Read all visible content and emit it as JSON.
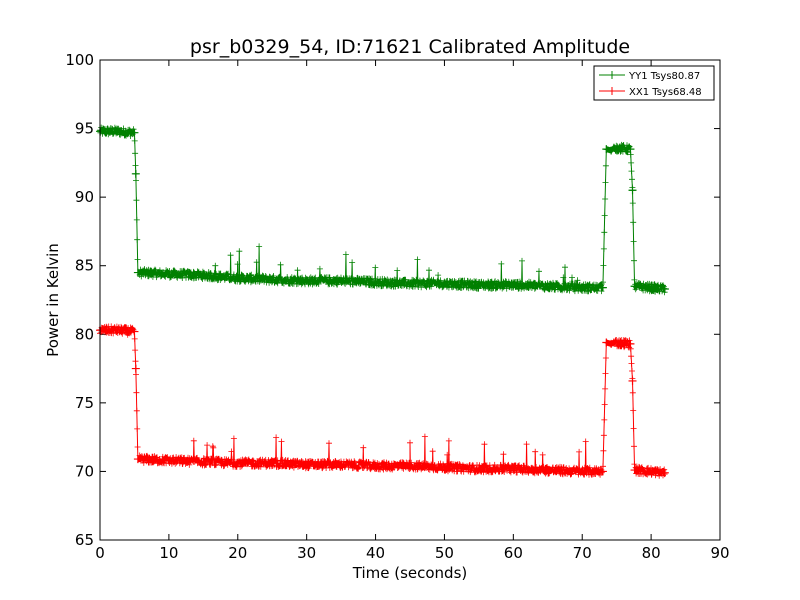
{
  "chart_data": {
    "type": "line",
    "title": "psr_b0329_54, ID:71621 Calibrated Amplitude",
    "xlabel": "Time (seconds)",
    "ylabel": "Power in Kelvin",
    "xlim": [
      0,
      90
    ],
    "ylim": [
      65,
      100
    ],
    "xticks": [
      "0",
      "10",
      "20",
      "30",
      "40",
      "50",
      "60",
      "70",
      "80",
      "90"
    ],
    "yticks": [
      "65",
      "70",
      "75",
      "80",
      "85",
      "90",
      "95",
      "100"
    ],
    "grid": false,
    "legend_position": "top-right",
    "marker": "+",
    "series": [
      {
        "name": "YY1 Tsys80.87",
        "color": "#008000",
        "x": [
          0,
          2.5,
          5.0,
          5.2,
          5.5,
          10,
          15,
          20,
          25,
          30,
          35,
          40,
          45,
          50,
          55,
          60,
          65,
          70,
          73.0,
          73.5,
          74.2,
          74.6,
          77.0,
          77.3,
          77.6,
          80,
          82
        ],
        "y": [
          94.8,
          94.8,
          94.7,
          91.7,
          84.5,
          84.4,
          84.3,
          84.1,
          84.0,
          83.9,
          83.9,
          83.8,
          83.7,
          83.7,
          83.6,
          83.6,
          83.5,
          83.4,
          83.4,
          93.5,
          93.4,
          93.6,
          93.5,
          90.5,
          83.5,
          83.4,
          83.3
        ]
      },
      {
        "name": "XX1 Tsys68.48",
        "color": "#ff0000",
        "x": [
          0,
          2.5,
          5.0,
          5.2,
          5.5,
          10,
          15,
          20,
          25,
          30,
          35,
          40,
          45,
          50,
          55,
          60,
          65,
          70,
          73.0,
          73.5,
          74.2,
          74.6,
          77.0,
          77.3,
          77.6,
          80,
          82
        ],
        "y": [
          80.3,
          80.3,
          80.2,
          77.5,
          70.9,
          70.8,
          70.7,
          70.6,
          70.6,
          70.5,
          70.5,
          70.4,
          70.4,
          70.3,
          70.2,
          70.2,
          70.1,
          70.0,
          70.0,
          79.4,
          79.3,
          79.4,
          79.3,
          76.6,
          70.1,
          70.0,
          69.9
        ]
      }
    ]
  }
}
